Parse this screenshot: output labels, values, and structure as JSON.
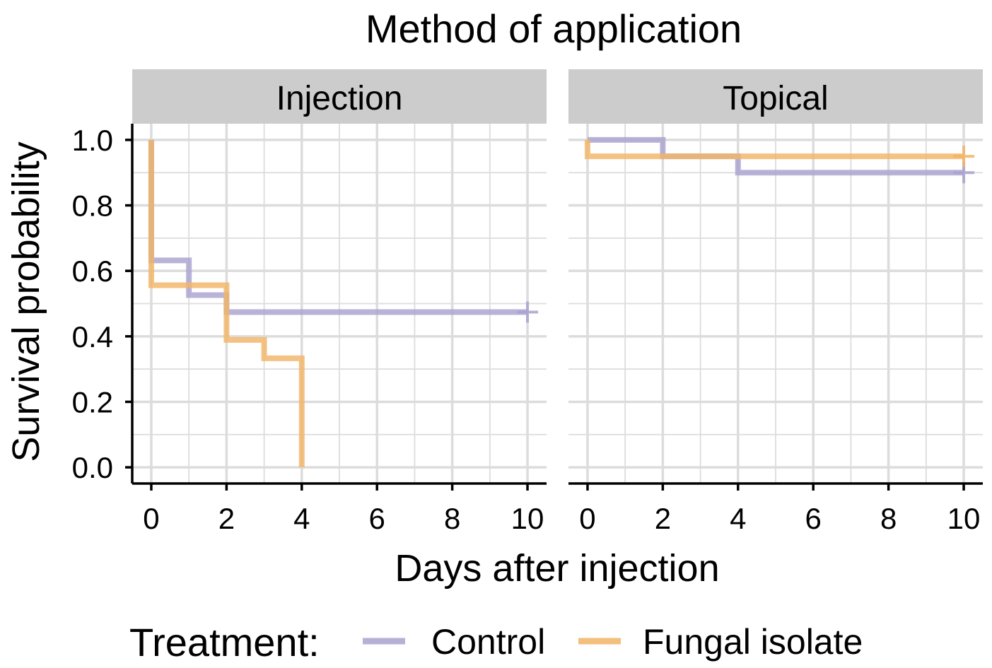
{
  "chart_data": {
    "type": "line",
    "step": true,
    "title": "Method of application",
    "xlabel": "Days after injection",
    "ylabel": "Survival probability",
    "xlim": [
      0,
      10
    ],
    "ylim": [
      0,
      1
    ],
    "xticks": [
      "0",
      "2",
      "4",
      "6",
      "8",
      "10"
    ],
    "yticks": [
      "0.0",
      "0.2",
      "0.4",
      "0.6",
      "0.8",
      "1.0"
    ],
    "grid": true,
    "legend": {
      "title": "Treatment:",
      "position": "bottom",
      "entries": [
        "Control",
        "Fungal isolate"
      ]
    },
    "colors": {
      "Control": "#a9a2d0",
      "Fungal isolate": "#f1b466"
    },
    "panels": [
      {
        "label": "Injection",
        "series": [
          {
            "name": "Control",
            "x": [
              0,
              0,
              1,
              2,
              10
            ],
            "y": [
              1.0,
              0.632,
              0.526,
              0.474,
              0.474
            ],
            "censor": [
              [
                10,
                0.474
              ]
            ]
          },
          {
            "name": "Fungal isolate",
            "x": [
              0,
              0,
              2,
              3,
              4
            ],
            "y": [
              1.0,
              0.556,
              0.389,
              0.333,
              0.0
            ],
            "censor": []
          }
        ]
      },
      {
        "label": "Topical",
        "series": [
          {
            "name": "Control",
            "x": [
              0,
              2,
              4,
              10
            ],
            "y": [
              1.0,
              0.95,
              0.9,
              0.9
            ],
            "censor": [
              [
                10,
                0.9
              ]
            ]
          },
          {
            "name": "Fungal isolate",
            "x": [
              0,
              0,
              10
            ],
            "y": [
              1.0,
              0.95,
              0.95
            ],
            "censor": [
              [
                10,
                0.95
              ]
            ]
          }
        ]
      }
    ]
  }
}
